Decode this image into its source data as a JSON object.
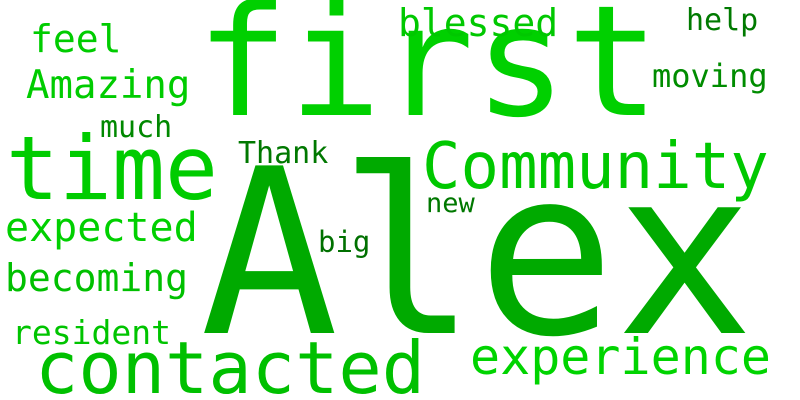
{
  "words": {
    "alex": {
      "text": "Alex",
      "color": "#00aa00"
    },
    "first": {
      "text": "first",
      "color": "#00d000"
    },
    "time": {
      "text": "time",
      "color": "#00cc00"
    },
    "community": {
      "text": "Community",
      "color": "#00c800"
    },
    "contacted": {
      "text": "contacted",
      "color": "#00c000"
    },
    "experience": {
      "text": "experience",
      "color": "#00d400"
    },
    "expected": {
      "text": "expected",
      "color": "#00d000"
    },
    "becoming": {
      "text": "becoming",
      "color": "#00c000"
    },
    "resident": {
      "text": "resident",
      "color": "#00c400"
    },
    "amazing": {
      "text": "Amazing",
      "color": "#00cc00"
    },
    "feel": {
      "text": "feel",
      "color": "#00cc00"
    },
    "blessed": {
      "text": "blessed",
      "color": "#00c800"
    },
    "help": {
      "text": "help",
      "color": "#007a00"
    },
    "moving": {
      "text": "moving",
      "color": "#008c00"
    },
    "much": {
      "text": "much",
      "color": "#008800"
    },
    "thank": {
      "text": "Thank",
      "color": "#007800"
    },
    "new": {
      "text": "new",
      "color": "#007800"
    },
    "big": {
      "text": "big",
      "color": "#007000"
    }
  }
}
